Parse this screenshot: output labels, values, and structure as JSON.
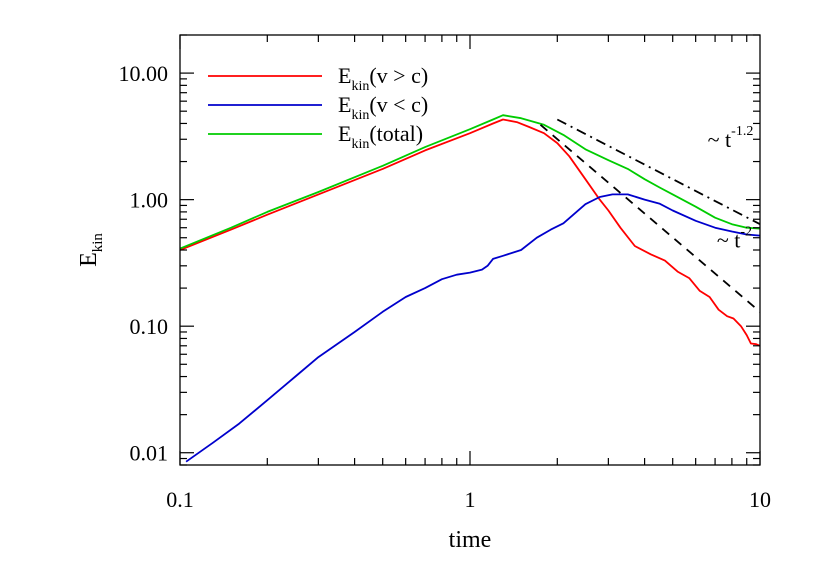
{
  "chart_data": {
    "type": "line",
    "xlabel": "time",
    "ylabel": "E",
    "ylabel_sub": "kin",
    "xscale": "log",
    "yscale": "log",
    "xlim": [
      0.1,
      10
    ],
    "ylim": [
      0.008,
      20
    ],
    "grid": false,
    "legend_position": "top-left",
    "xticks": [
      {
        "value": 0.1,
        "label": "0.1"
      },
      {
        "value": 1,
        "label": "1"
      },
      {
        "value": 10,
        "label": "10"
      }
    ],
    "yticks": [
      {
        "value": 0.01,
        "label": "0.01"
      },
      {
        "value": 0.1,
        "label": "0.10"
      },
      {
        "value": 1,
        "label": "1.00"
      },
      {
        "value": 10,
        "label": "10.00"
      }
    ],
    "series": [
      {
        "name": "E_kin(v > c)",
        "legend_main": "E",
        "legend_sub": "kin",
        "legend_rest": "(v > c)",
        "color": "#ff0000",
        "points": [
          [
            0.1,
            0.4
          ],
          [
            0.15,
            0.58
          ],
          [
            0.2,
            0.76
          ],
          [
            0.3,
            1.1
          ],
          [
            0.5,
            1.75
          ],
          [
            0.7,
            2.45
          ],
          [
            1.0,
            3.35
          ],
          [
            1.2,
            4.0
          ],
          [
            1.3,
            4.3
          ],
          [
            1.45,
            4.1
          ],
          [
            1.6,
            3.75
          ],
          [
            1.8,
            3.35
          ],
          [
            2.0,
            2.8
          ],
          [
            2.2,
            2.2
          ],
          [
            2.5,
            1.45
          ],
          [
            2.8,
            1.0
          ],
          [
            3.0,
            0.82
          ],
          [
            3.3,
            0.6
          ],
          [
            3.7,
            0.43
          ],
          [
            4.2,
            0.37
          ],
          [
            4.7,
            0.33
          ],
          [
            5.2,
            0.27
          ],
          [
            5.7,
            0.24
          ],
          [
            6.2,
            0.19
          ],
          [
            6.7,
            0.17
          ],
          [
            7.2,
            0.135
          ],
          [
            7.7,
            0.12
          ],
          [
            8.1,
            0.115
          ],
          [
            8.6,
            0.1
          ],
          [
            9.0,
            0.085
          ],
          [
            9.3,
            0.073
          ],
          [
            9.7,
            0.072
          ],
          [
            10.0,
            0.07
          ]
        ]
      },
      {
        "name": "E_kin(v < c)",
        "legend_main": "E",
        "legend_sub": "kin",
        "legend_rest": "(v < c)",
        "color": "#0000cc",
        "points": [
          [
            0.105,
            0.0085
          ],
          [
            0.13,
            0.012
          ],
          [
            0.16,
            0.017
          ],
          [
            0.2,
            0.026
          ],
          [
            0.25,
            0.04
          ],
          [
            0.3,
            0.057
          ],
          [
            0.4,
            0.09
          ],
          [
            0.5,
            0.13
          ],
          [
            0.6,
            0.17
          ],
          [
            0.7,
            0.2
          ],
          [
            0.8,
            0.235
          ],
          [
            0.9,
            0.255
          ],
          [
            1.0,
            0.265
          ],
          [
            1.1,
            0.28
          ],
          [
            1.15,
            0.3
          ],
          [
            1.2,
            0.34
          ],
          [
            1.3,
            0.36
          ],
          [
            1.5,
            0.4
          ],
          [
            1.7,
            0.5
          ],
          [
            1.9,
            0.58
          ],
          [
            2.1,
            0.65
          ],
          [
            2.3,
            0.78
          ],
          [
            2.5,
            0.92
          ],
          [
            2.8,
            1.05
          ],
          [
            3.1,
            1.1
          ],
          [
            3.5,
            1.1
          ],
          [
            4.0,
            1.0
          ],
          [
            4.5,
            0.93
          ],
          [
            5.0,
            0.82
          ],
          [
            6.0,
            0.68
          ],
          [
            7.0,
            0.6
          ],
          [
            8.0,
            0.56
          ],
          [
            9.0,
            0.53
          ],
          [
            10.0,
            0.52
          ]
        ]
      },
      {
        "name": "E_kin(total)",
        "legend_main": "E",
        "legend_sub": "kin",
        "legend_rest": "(total)",
        "color": "#00cc00",
        "points": [
          [
            0.1,
            0.41
          ],
          [
            0.15,
            0.6
          ],
          [
            0.2,
            0.8
          ],
          [
            0.3,
            1.15
          ],
          [
            0.5,
            1.85
          ],
          [
            0.7,
            2.6
          ],
          [
            1.0,
            3.6
          ],
          [
            1.2,
            4.3
          ],
          [
            1.3,
            4.65
          ],
          [
            1.5,
            4.4
          ],
          [
            1.8,
            3.9
          ],
          [
            2.1,
            3.25
          ],
          [
            2.5,
            2.5
          ],
          [
            3.0,
            2.05
          ],
          [
            3.5,
            1.75
          ],
          [
            4.0,
            1.45
          ],
          [
            4.5,
            1.25
          ],
          [
            5.0,
            1.1
          ],
          [
            6.0,
            0.88
          ],
          [
            7.0,
            0.72
          ],
          [
            8.0,
            0.64
          ],
          [
            9.0,
            0.6
          ],
          [
            10.0,
            0.59
          ]
        ]
      },
      {
        "name": "~ t^-2",
        "color": "#000000",
        "dash": "9,7",
        "points": [
          [
            1.75,
            3.9
          ],
          [
            10.0,
            0.13
          ]
        ]
      },
      {
        "name": "~ t^-1.2",
        "color": "#000000",
        "dash": "10,5,2,5",
        "points": [
          [
            2.0,
            4.3
          ],
          [
            10.0,
            0.64
          ]
        ]
      }
    ],
    "annotations": [
      {
        "tilde": "~ t",
        "power": "-1.2",
        "x": 6.6,
        "y": 2.6
      },
      {
        "tilde": "~ t",
        "power": "-2",
        "x": 7.1,
        "y": 0.42
      }
    ]
  }
}
